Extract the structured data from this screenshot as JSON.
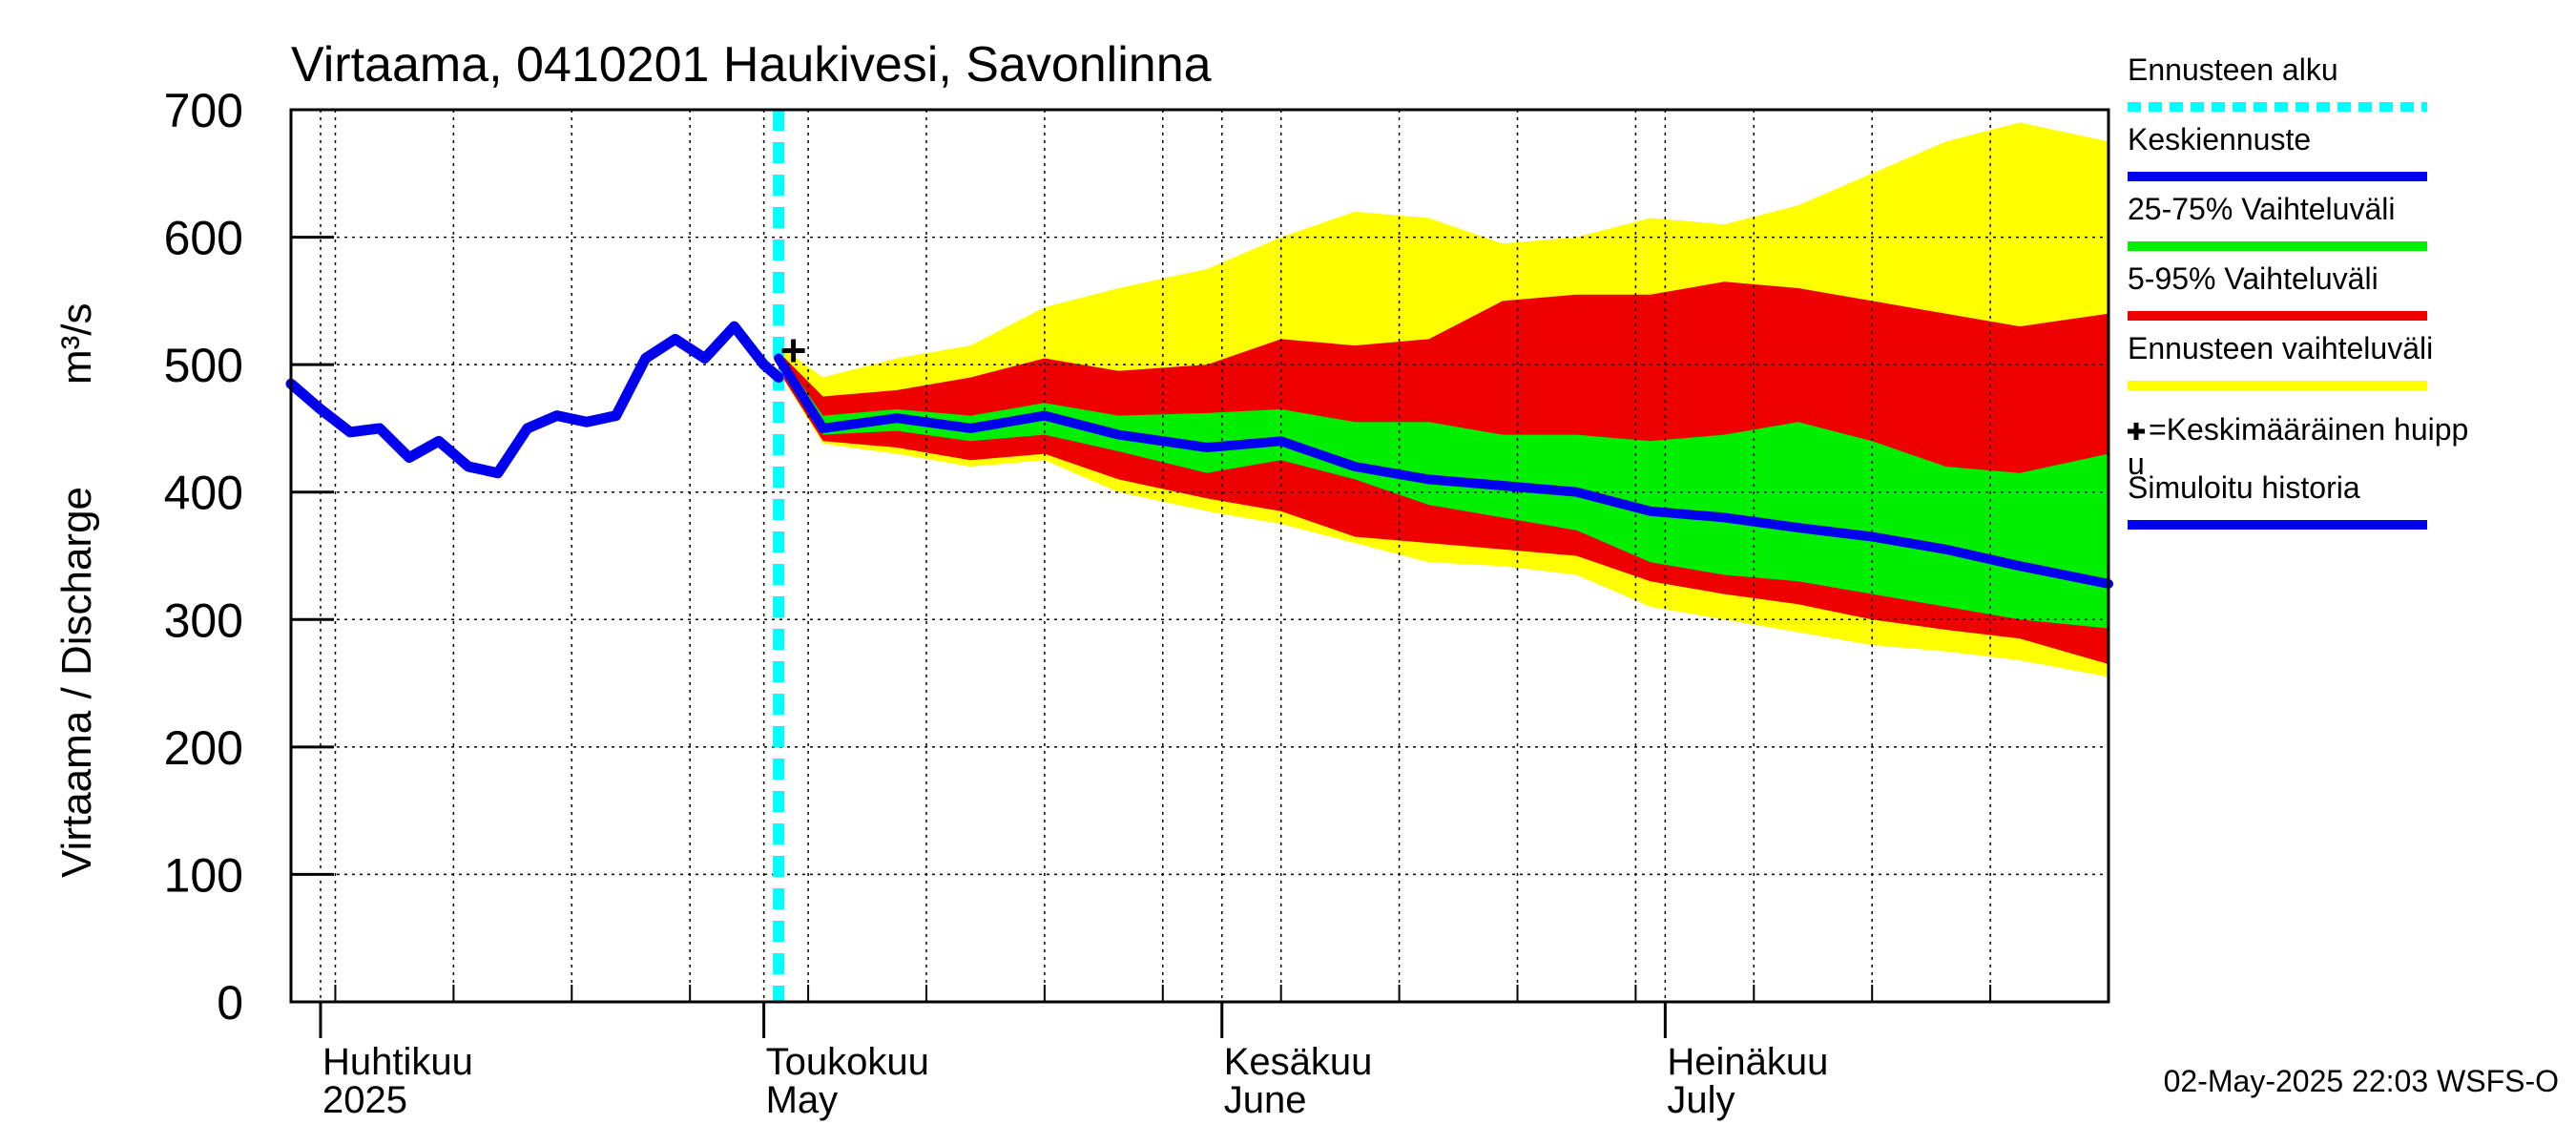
{
  "chart_data": {
    "type": "area",
    "title": "Virtaama, 0410201 Haukivesi, Savonlinna",
    "ylabel": "Virtaama / Discharge",
    "yunit": "m³/s",
    "ylim": [
      0,
      700
    ],
    "yticks": [
      "0",
      "100",
      "200",
      "300",
      "400",
      "500",
      "600",
      "700"
    ],
    "x_start": "2025-03-30",
    "x_end": "2025-07-31",
    "grid": true,
    "months": [
      {
        "label": "Huhtikuu",
        "label2": "2025",
        "date": "2025-04-01"
      },
      {
        "label": "Toukokuu",
        "label2": "May",
        "date": "2025-05-01"
      },
      {
        "label": "Kesäkuu",
        "label2": "June",
        "date": "2025-06-01"
      },
      {
        "label": "Heinäkuu",
        "label2": "July",
        "date": "2025-07-01"
      }
    ],
    "forecast_start": "2025-05-02",
    "mean_peak": {
      "x": "2025-05-03",
      "y": 511
    },
    "timestamp": "02-May-2025 22:03 WSFS-O",
    "colors": {
      "history": "#0000ee",
      "forecast_start": "#00ffff",
      "p25_75": "#00ee00",
      "p5_95": "#ee0000",
      "range": "#ffff00",
      "peak": "#000000"
    },
    "legend": [
      {
        "label": "Ennusteen alku",
        "color": "#00ffff",
        "style": "dashed"
      },
      {
        "label": "Keskiennuste",
        "color": "#0000ee",
        "style": "solid"
      },
      {
        "label": "25-75% Vaihteluväli",
        "color": "#00ee00",
        "style": "solid"
      },
      {
        "label": "5-95% Vaihteluväli",
        "color": "#ee0000",
        "style": "solid"
      },
      {
        "label": "Ennusteen vaihteluväli",
        "color": "#ffff00",
        "style": "solid"
      },
      {
        "label": "=Keskimääräinen huipp",
        "label2": "u",
        "color": "#000000",
        "style": "marker"
      },
      {
        "label": "Simuloitu historia",
        "color": "#0000ee",
        "style": "solid"
      }
    ],
    "history": {
      "name": "Simuloitu historia",
      "x": [
        "2025-03-30",
        "2025-04-01",
        "2025-04-03",
        "2025-04-05",
        "2025-04-07",
        "2025-04-09",
        "2025-04-11",
        "2025-04-13",
        "2025-04-15",
        "2025-04-17",
        "2025-04-19",
        "2025-04-21",
        "2025-04-23",
        "2025-04-25",
        "2025-04-27",
        "2025-04-29",
        "2025-05-01",
        "2025-05-02"
      ],
      "y": [
        485,
        465,
        447,
        450,
        427,
        440,
        420,
        415,
        450,
        460,
        455,
        460,
        505,
        520,
        505,
        530,
        500,
        490
      ]
    },
    "forecast": {
      "x": [
        "2025-05-02",
        "2025-05-05",
        "2025-05-10",
        "2025-05-15",
        "2025-05-20",
        "2025-05-25",
        "2025-05-31",
        "2025-06-05",
        "2025-06-10",
        "2025-06-15",
        "2025-06-20",
        "2025-06-25",
        "2025-06-30",
        "2025-07-05",
        "2025-07-10",
        "2025-07-15",
        "2025-07-20",
        "2025-07-25",
        "2025-07-31"
      ],
      "mean": [
        505,
        450,
        458,
        450,
        460,
        445,
        435,
        440,
        420,
        410,
        405,
        400,
        385,
        380,
        372,
        365,
        355,
        342,
        328
      ],
      "p25": [
        500,
        445,
        448,
        440,
        445,
        432,
        415,
        425,
        410,
        390,
        380,
        370,
        345,
        335,
        330,
        320,
        310,
        300,
        293
      ],
      "p75": [
        510,
        460,
        465,
        460,
        470,
        460,
        462,
        465,
        455,
        455,
        445,
        445,
        440,
        445,
        455,
        440,
        420,
        415,
        430
      ],
      "p5": [
        495,
        440,
        435,
        425,
        430,
        410,
        395,
        385,
        365,
        360,
        355,
        350,
        330,
        320,
        312,
        300,
        292,
        285,
        265
      ],
      "p95": [
        510,
        475,
        480,
        490,
        505,
        495,
        500,
        520,
        515,
        520,
        550,
        555,
        555,
        565,
        560,
        550,
        540,
        530,
        540
      ],
      "min": [
        495,
        438,
        430,
        420,
        425,
        400,
        385,
        375,
        360,
        345,
        342,
        335,
        310,
        300,
        290,
        280,
        275,
        268,
        255
      ],
      "max": [
        515,
        490,
        505,
        515,
        545,
        560,
        575,
        600,
        620,
        615,
        595,
        600,
        615,
        610,
        625,
        650,
        675,
        690,
        675
      ]
    }
  }
}
